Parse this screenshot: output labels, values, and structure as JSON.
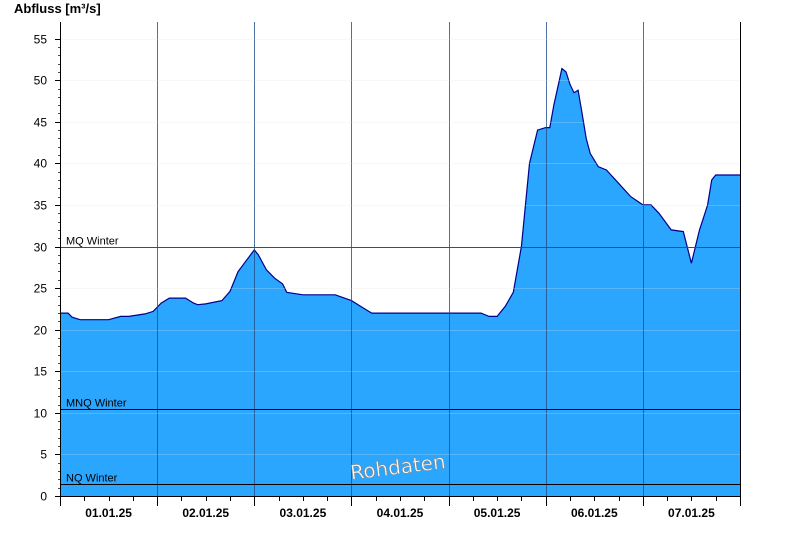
{
  "chart_data": {
    "type": "area",
    "ylabel": "Abfluss [m³/s]",
    "ylim": [
      0,
      57
    ],
    "yticks": [
      0,
      5,
      10,
      15,
      20,
      25,
      30,
      35,
      40,
      45,
      50,
      55
    ],
    "xlim": [
      "01.01.25 00:00",
      "08.01.25 00:00"
    ],
    "x_tick_labels": [
      "01.01.25",
      "02.01.25",
      "03.01.25",
      "04.01.25",
      "05.01.25",
      "06.01.25",
      "07.01.25"
    ],
    "grid": "vertical lines at midnight",
    "fill_color": "#2aa6ff",
    "line_color": "#00008b",
    "series": [
      {
        "x": [
          "01.01.25 00:00",
          "01.01.25 02:00",
          "01.01.25 03:00",
          "01.01.25 05:00",
          "01.01.25 08:00",
          "01.01.25 12:00",
          "01.01.25 15:00",
          "01.01.25 17:00",
          "01.01.25 21:00",
          "01.01.25 23:00",
          "02.01.25 01:00",
          "02.01.25 03:00",
          "02.01.25 07:00",
          "02.01.25 09:00",
          "02.01.25 10:00",
          "02.01.25 12:00",
          "02.01.25 16:00",
          "02.01.25 18:00",
          "02.01.25 20:00",
          "02.01.25 22:00",
          "03.01.25 00:00",
          "03.01.25 01:00",
          "03.01.25 03:00",
          "03.01.25 05:00",
          "03.01.25 07:00",
          "03.01.25 08:00",
          "03.01.25 12:00",
          "03.01.25 16:00",
          "03.01.25 20:00",
          "04.01.25 00:00",
          "04.01.25 02:00",
          "04.01.25 05:00",
          "04.01.25 12:00",
          "04.01.25 18:00",
          "05.01.25 00:00",
          "05.01.25 08:00",
          "05.01.25 10:00",
          "05.01.25 12:00",
          "05.01.25 14:00",
          "05.01.25 16:00",
          "05.01.25 18:00",
          "05.01.25 20:00",
          "05.01.25 22:00",
          "06.01.25 00:00",
          "06.01.25 01:00",
          "06.01.25 02:00",
          "06.01.25 04:00",
          "06.01.25 05:00",
          "06.01.25 06:00",
          "06.01.25 07:00",
          "06.01.25 08:00",
          "06.01.25 09:00",
          "06.01.25 10:00",
          "06.01.25 11:00",
          "06.01.25 13:00",
          "06.01.25 15:00",
          "06.01.25 18:00",
          "06.01.25 21:00",
          "07.01.25 00:00",
          "07.01.25 02:00",
          "07.01.25 04:00",
          "07.01.25 07:00",
          "07.01.25 10:00",
          "07.01.25 12:00",
          "07.01.25 14:00",
          "07.01.25 15:00",
          "07.01.25 16:00",
          "07.01.25 17:00",
          "07.01.25 18:00",
          "07.01.25 20:00",
          "07.01.25 22:00",
          "08.01.25 00:00"
        ],
        "y": [
          22,
          22,
          21.5,
          21.2,
          21.2,
          21.2,
          21.6,
          21.6,
          21.9,
          22.2,
          23.2,
          23.8,
          23.8,
          23.2,
          23,
          23.1,
          23.5,
          24.6,
          27,
          28.3,
          29.6,
          29,
          27.2,
          26.2,
          25.5,
          24.5,
          24.2,
          24.2,
          24.2,
          23.5,
          22.9,
          22,
          22,
          22,
          22,
          22,
          21.6,
          21.6,
          22.8,
          24.5,
          30,
          40,
          44,
          44.3,
          44.3,
          47,
          51.4,
          51,
          49.5,
          48.5,
          48.8,
          46,
          43,
          41.2,
          39.6,
          39.2,
          37.6,
          36,
          35,
          35,
          34,
          32,
          31.8,
          28,
          32,
          33.5,
          35,
          38,
          38.6,
          38.6,
          38.6,
          38.6
        ]
      }
    ],
    "reference_lines": [
      {
        "label": "MQ Winter",
        "value": 29.9,
        "color": "#008000"
      },
      {
        "label": "MNQ Winter",
        "value": 10.5,
        "color": "#000000"
      },
      {
        "label": "NQ Winter",
        "value": 1.5,
        "color": "#000000"
      }
    ],
    "watermark": "Rohdaten"
  }
}
